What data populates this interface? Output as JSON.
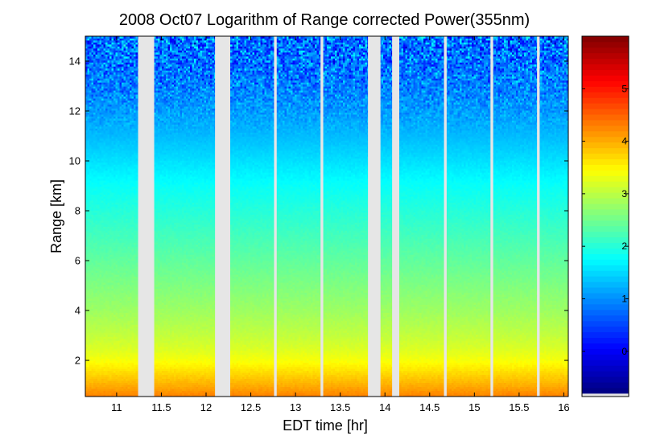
{
  "chart_data": {
    "type": "heatmap",
    "title": "2008 Oct07  Logarithm of Range corrected Power(355nm)",
    "xlabel": "EDT time [hr]",
    "ylabel": "Range [km]",
    "xlim": [
      10.65,
      16.05
    ],
    "ylim": [
      0.55,
      15.0
    ],
    "xticks": [
      11,
      11.5,
      12,
      12.5,
      13,
      13.5,
      14,
      14.5,
      15,
      15.5,
      16
    ],
    "xtick_labels": [
      "11",
      "11.5",
      "12",
      "12.5",
      "13",
      "13.5",
      "14",
      "14.5",
      "15",
      "15.5",
      "16"
    ],
    "yticks": [
      2,
      4,
      6,
      8,
      10,
      12,
      14
    ],
    "ytick_labels": [
      "2",
      "4",
      "6",
      "8",
      "10",
      "12",
      "14"
    ],
    "colorbar": {
      "colormap": "jet",
      "clim": [
        -0.8,
        6.0
      ],
      "ticks": [
        0,
        1,
        2,
        3,
        4,
        5
      ],
      "tick_labels": [
        "0",
        "1",
        "2",
        "3",
        "4",
        "5"
      ],
      "background": "#e6e6e6"
    },
    "profile": {
      "range_km": [
        0.55,
        1.0,
        1.5,
        2.0,
        2.5,
        3.0,
        4.0,
        5.0,
        6.0,
        7.0,
        8.0,
        9.0,
        10.0,
        11.0,
        12.0,
        13.0,
        14.0,
        15.0
      ],
      "value": [
        4.3,
        4.0,
        3.7,
        3.4,
        3.2,
        3.05,
        2.8,
        2.6,
        2.4,
        2.2,
        2.0,
        1.8,
        1.55,
        1.3,
        1.1,
        0.9,
        0.8,
        0.75
      ]
    },
    "noise_onset_km": 11.0,
    "data_gaps_hr": [
      [
        11.24,
        11.42
      ],
      [
        12.1,
        12.27
      ],
      [
        12.76,
        12.79
      ],
      [
        13.28,
        13.31
      ],
      [
        13.81,
        13.95
      ],
      [
        14.08,
        14.16
      ],
      [
        14.66,
        14.69
      ],
      [
        15.18,
        15.21
      ],
      [
        15.7,
        15.73
      ]
    ],
    "gap_color": "#e6e6e6",
    "grid": false,
    "legend": "none"
  }
}
